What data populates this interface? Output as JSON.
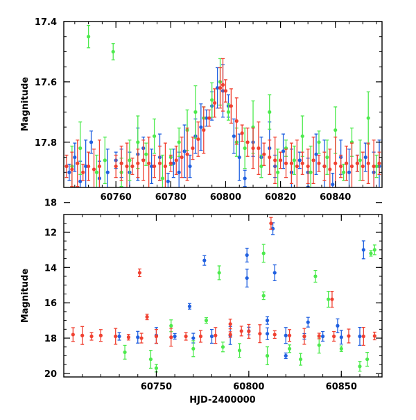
{
  "chart_data": [
    {
      "type": "scatter",
      "panel": "top",
      "xlabel": "",
      "ylabel": "Magnitude",
      "xlim": [
        60741,
        60857
      ],
      "ylim": [
        17.4,
        17.95
      ],
      "y_inverted": true,
      "x_ticks": [
        60760,
        60780,
        60800,
        60820,
        60840
      ],
      "y_ticks": [
        17.4,
        17.6,
        17.8,
        18
      ],
      "y_tick_labels": [
        "17.4",
        "17.6",
        "17.8",
        "18"
      ],
      "grid": false,
      "error_bars": true,
      "series": [
        {
          "color": "#2060e0",
          "points": [
            [
              60743,
              17.9
            ],
            [
              60745,
              17.85
            ],
            [
              60747,
              17.93
            ],
            [
              60749,
              17.88
            ],
            [
              60751,
              17.8
            ],
            [
              60754,
              17.92
            ],
            [
              60757,
              17.9
            ],
            [
              60760,
              17.86
            ],
            [
              60762,
              17.87
            ],
            [
              60765,
              17.9
            ],
            [
              60768,
              17.84
            ],
            [
              60770,
              17.82
            ],
            [
              60773,
              17.88
            ],
            [
              60776,
              17.85
            ],
            [
              60779,
              17.93
            ],
            [
              60781,
              17.87
            ],
            [
              60783,
              17.9
            ],
            [
              60785,
              17.83
            ],
            [
              60787,
              17.88
            ],
            [
              60789,
              17.78
            ],
            [
              60791,
              17.75
            ],
            [
              60793,
              17.72
            ],
            [
              60795,
              17.68
            ],
            [
              60797,
              17.62
            ],
            [
              60799,
              17.63
            ],
            [
              60801,
              17.68
            ],
            [
              60803,
              17.78
            ],
            [
              60805,
              17.85
            ],
            [
              60807,
              17.92
            ],
            [
              60810,
              17.8
            ],
            [
              60813,
              17.85
            ],
            [
              60816,
              17.82
            ],
            [
              60818,
              17.88
            ],
            [
              60821,
              17.83
            ],
            [
              60824,
              17.9
            ],
            [
              60827,
              17.86
            ],
            [
              60830,
              17.9
            ],
            [
              60833,
              17.84
            ],
            [
              60836,
              17.88
            ],
            [
              60839,
              17.94
            ],
            [
              60842,
              17.85
            ],
            [
              60845,
              17.9
            ],
            [
              60848,
              17.87
            ],
            [
              60851,
              17.85
            ],
            [
              60854,
              17.9
            ],
            [
              60856,
              17.88
            ]
          ]
        },
        {
          "color": "#4dea4d",
          "points": [
            [
              60744,
              17.88
            ],
            [
              60747,
              17.82
            ],
            [
              60750,
              17.45
            ],
            [
              60753,
              17.9
            ],
            [
              60756,
              17.86
            ],
            [
              60759,
              17.5
            ],
            [
              60762,
              17.9
            ],
            [
              60765,
              17.86
            ],
            [
              60768,
              17.8
            ],
            [
              60771,
              17.84
            ],
            [
              60774,
              17.78
            ],
            [
              60777,
              17.92
            ],
            [
              60780,
              17.85
            ],
            [
              60783,
              17.8
            ],
            [
              60786,
              17.76
            ],
            [
              60789,
              17.7
            ],
            [
              60792,
              17.72
            ],
            [
              60795,
              17.66
            ],
            [
              60798,
              17.6
            ],
            [
              60801,
              17.7
            ],
            [
              60804,
              17.8
            ],
            [
              60807,
              17.82
            ],
            [
              60810,
              17.75
            ],
            [
              60813,
              17.88
            ],
            [
              60816,
              17.7
            ],
            [
              60819,
              17.9
            ],
            [
              60822,
              17.82
            ],
            [
              60825,
              17.86
            ],
            [
              60828,
              17.78
            ],
            [
              60831,
              17.9
            ],
            [
              60834,
              17.8
            ],
            [
              60837,
              17.85
            ],
            [
              60840,
              17.76
            ],
            [
              60843,
              17.9
            ],
            [
              60846,
              17.8
            ],
            [
              60849,
              17.86
            ],
            [
              60852,
              17.72
            ],
            [
              60855,
              17.88
            ]
          ]
        },
        {
          "color": "#f04030",
          "points": [
            [
              60742,
              17.88
            ],
            [
              60744,
              17.89
            ],
            [
              60746,
              17.87
            ],
            [
              60748,
              17.9
            ],
            [
              60750,
              17.88
            ],
            [
              60752,
              17.89
            ],
            [
              60754,
              17.88
            ],
            [
              60760,
              17.88
            ],
            [
              60762,
              17.87
            ],
            [
              60764,
              17.88
            ],
            [
              60766,
              17.88
            ],
            [
              60768,
              17.87
            ],
            [
              60770,
              17.86
            ],
            [
              60772,
              17.87
            ],
            [
              60774,
              17.88
            ],
            [
              60776,
              17.87
            ],
            [
              60778,
              17.88
            ],
            [
              60780,
              17.87
            ],
            [
              60782,
              17.86
            ],
            [
              60784,
              17.85
            ],
            [
              60786,
              17.84
            ],
            [
              60788,
              17.82
            ],
            [
              60790,
              17.79
            ],
            [
              60792,
              17.76
            ],
            [
              60794,
              17.72
            ],
            [
              60796,
              17.67
            ],
            [
              60798,
              17.62
            ],
            [
              60799,
              17.61
            ],
            [
              60800,
              17.63
            ],
            [
              60802,
              17.68
            ],
            [
              60804,
              17.73
            ],
            [
              60806,
              17.77
            ],
            [
              60808,
              17.8
            ],
            [
              60810,
              17.82
            ],
            [
              60812,
              17.82
            ],
            [
              60814,
              17.84
            ],
            [
              60816,
              17.85
            ],
            [
              60818,
              17.86
            ],
            [
              60820,
              17.86
            ],
            [
              60822,
              17.87
            ],
            [
              60824,
              17.87
            ],
            [
              60826,
              17.88
            ],
            [
              60828,
              17.87
            ],
            [
              60830,
              17.88
            ],
            [
              60832,
              17.86
            ],
            [
              60834,
              17.87
            ],
            [
              60836,
              17.88
            ],
            [
              60838,
              17.89
            ],
            [
              60840,
              17.87
            ],
            [
              60842,
              17.88
            ],
            [
              60844,
              17.87
            ],
            [
              60846,
              17.88
            ],
            [
              60848,
              17.87
            ],
            [
              60850,
              17.88
            ],
            [
              60852,
              17.87
            ],
            [
              60854,
              17.88
            ],
            [
              60856,
              17.87
            ]
          ]
        }
      ]
    },
    {
      "type": "scatter",
      "panel": "bottom",
      "xlabel": "HJD-2400000",
      "ylabel": "Magnitude",
      "xlim": [
        60700,
        60872
      ],
      "ylim": [
        11,
        20.2
      ],
      "y_inverted": true,
      "x_ticks": [
        60750,
        60800,
        60850
      ],
      "y_ticks": [
        12,
        14,
        16,
        18,
        20
      ],
      "y_tick_labels": [
        "12",
        "14",
        "16",
        "18",
        "20"
      ],
      "grid": false,
      "error_bars": true,
      "series": [
        {
          "color": "#2060e0",
          "points": [
            [
              60768,
              16.2
            ],
            [
              60776,
              13.6
            ],
            [
              60799,
              13.3
            ],
            [
              60799,
              14.6
            ],
            [
              60810,
              17.0
            ],
            [
              60813,
              11.8
            ],
            [
              60814,
              14.3
            ],
            [
              60820,
              19.0
            ],
            [
              60832,
              17.1
            ],
            [
              60848,
              17.3
            ],
            [
              60862,
              13.0
            ],
            [
              60730,
              17.9
            ],
            [
              60740,
              17.95
            ],
            [
              60750,
              17.85
            ],
            [
              60760,
              17.9
            ],
            [
              60770,
              18.0
            ],
            [
              60780,
              17.9
            ],
            [
              60790,
              17.85
            ],
            [
              60800,
              17.6
            ],
            [
              60810,
              17.75
            ],
            [
              60820,
              17.85
            ],
            [
              60830,
              17.9
            ],
            [
              60840,
              17.9
            ],
            [
              60850,
              17.95
            ],
            [
              60860,
              17.9
            ]
          ]
        },
        {
          "color": "#4dea4d",
          "points": [
            [
              60784,
              14.3
            ],
            [
              60808,
              13.2
            ],
            [
              60808,
              15.6
            ],
            [
              60836,
              14.5
            ],
            [
              60843,
              15.8
            ],
            [
              60866,
              13.2
            ],
            [
              60868,
              13.0
            ],
            [
              60733,
              18.8
            ],
            [
              60747,
              19.2
            ],
            [
              60750,
              19.7
            ],
            [
              60758,
              17.3
            ],
            [
              60770,
              18.6
            ],
            [
              60777,
              17.0
            ],
            [
              60786,
              18.5
            ],
            [
              60795,
              18.7
            ],
            [
              60810,
              19.0
            ],
            [
              60822,
              18.6
            ],
            [
              60828,
              19.2
            ],
            [
              60838,
              18.4
            ],
            [
              60850,
              18.6
            ],
            [
              60860,
              19.6
            ],
            [
              60864,
              19.2
            ]
          ]
        },
        {
          "color": "#f04030",
          "points": [
            [
              60741,
              14.3
            ],
            [
              60812,
              11.5
            ],
            [
              60845,
              15.8
            ],
            [
              60745,
              16.8
            ],
            [
              60790,
              17.2
            ],
            [
              60705,
              17.8
            ],
            [
              60710,
              17.85
            ],
            [
              60715,
              17.9
            ],
            [
              60720,
              17.85
            ],
            [
              60728,
              17.9
            ],
            [
              60735,
              17.95
            ],
            [
              60742,
              18.0
            ],
            [
              60750,
              17.9
            ],
            [
              60758,
              17.95
            ],
            [
              60766,
              17.9
            ],
            [
              60774,
              17.9
            ],
            [
              60782,
              17.85
            ],
            [
              60790,
              17.8
            ],
            [
              60796,
              17.6
            ],
            [
              60800,
              17.62
            ],
            [
              60806,
              17.75
            ],
            [
              60814,
              17.8
            ],
            [
              60822,
              17.85
            ],
            [
              60830,
              17.9
            ],
            [
              60838,
              17.88
            ],
            [
              60846,
              17.9
            ],
            [
              60854,
              17.88
            ],
            [
              60862,
              17.9
            ],
            [
              60868,
              17.88
            ]
          ]
        }
      ]
    }
  ]
}
